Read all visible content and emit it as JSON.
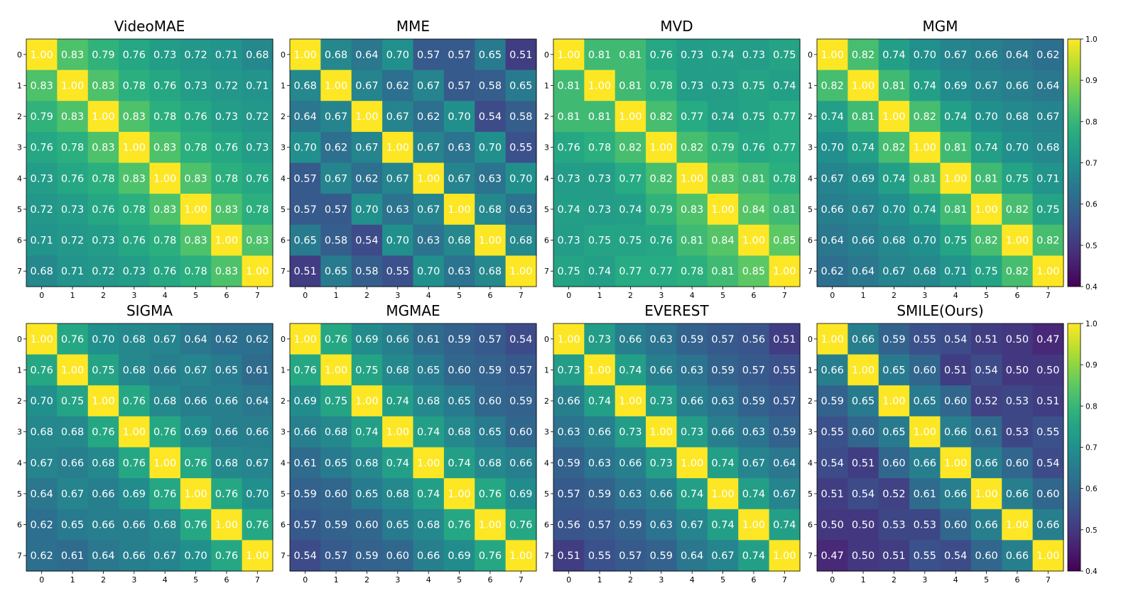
{
  "chart_data": {
    "type": "heatmap",
    "x_ticks": [
      "0",
      "1",
      "2",
      "3",
      "4",
      "5",
      "6",
      "7"
    ],
    "y_ticks": [
      "0",
      "1",
      "2",
      "3",
      "4",
      "5",
      "6",
      "7"
    ],
    "colormap": "viridis",
    "color_range": [
      0.4,
      1.0
    ],
    "colorbar_ticks": [
      "0.4",
      "0.5",
      "0.6",
      "0.7",
      "0.8",
      "0.9",
      "1.0"
    ],
    "panels": [
      {
        "title": "VideoMAE",
        "values": [
          [
            1.0,
            0.83,
            0.79,
            0.76,
            0.73,
            0.72,
            0.71,
            0.68
          ],
          [
            0.83,
            1.0,
            0.83,
            0.78,
            0.76,
            0.73,
            0.72,
            0.71
          ],
          [
            0.79,
            0.83,
            1.0,
            0.83,
            0.78,
            0.76,
            0.73,
            0.72
          ],
          [
            0.76,
            0.78,
            0.83,
            1.0,
            0.83,
            0.78,
            0.76,
            0.73
          ],
          [
            0.73,
            0.76,
            0.78,
            0.83,
            1.0,
            0.83,
            0.78,
            0.76
          ],
          [
            0.72,
            0.73,
            0.76,
            0.78,
            0.83,
            1.0,
            0.83,
            0.78
          ],
          [
            0.71,
            0.72,
            0.73,
            0.76,
            0.78,
            0.83,
            1.0,
            0.83
          ],
          [
            0.68,
            0.71,
            0.72,
            0.73,
            0.76,
            0.78,
            0.83,
            1.0
          ]
        ]
      },
      {
        "title": "MME",
        "values": [
          [
            1.0,
            0.68,
            0.64,
            0.7,
            0.57,
            0.57,
            0.65,
            0.51
          ],
          [
            0.68,
            1.0,
            0.67,
            0.62,
            0.67,
            0.57,
            0.58,
            0.65
          ],
          [
            0.64,
            0.67,
            1.0,
            0.67,
            0.62,
            0.7,
            0.54,
            0.58
          ],
          [
            0.7,
            0.62,
            0.67,
            1.0,
            0.67,
            0.63,
            0.7,
            0.55
          ],
          [
            0.57,
            0.67,
            0.62,
            0.67,
            1.0,
            0.67,
            0.63,
            0.7
          ],
          [
            0.57,
            0.57,
            0.7,
            0.63,
            0.67,
            1.0,
            0.68,
            0.63
          ],
          [
            0.65,
            0.58,
            0.54,
            0.7,
            0.63,
            0.68,
            1.0,
            0.68
          ],
          [
            0.51,
            0.65,
            0.58,
            0.55,
            0.7,
            0.63,
            0.68,
            1.0
          ]
        ]
      },
      {
        "title": "MVD",
        "values": [
          [
            1.0,
            0.81,
            0.81,
            0.76,
            0.73,
            0.74,
            0.73,
            0.75
          ],
          [
            0.81,
            1.0,
            0.81,
            0.78,
            0.73,
            0.73,
            0.75,
            0.74
          ],
          [
            0.81,
            0.81,
            1.0,
            0.82,
            0.77,
            0.74,
            0.75,
            0.77
          ],
          [
            0.76,
            0.78,
            0.82,
            1.0,
            0.82,
            0.79,
            0.76,
            0.77
          ],
          [
            0.73,
            0.73,
            0.77,
            0.82,
            1.0,
            0.83,
            0.81,
            0.78
          ],
          [
            0.74,
            0.73,
            0.74,
            0.79,
            0.83,
            1.0,
            0.84,
            0.81
          ],
          [
            0.73,
            0.75,
            0.75,
            0.76,
            0.81,
            0.84,
            1.0,
            0.85
          ],
          [
            0.75,
            0.74,
            0.77,
            0.77,
            0.78,
            0.81,
            0.85,
            1.0
          ]
        ]
      },
      {
        "title": "MGM",
        "values": [
          [
            1.0,
            0.82,
            0.74,
            0.7,
            0.67,
            0.66,
            0.64,
            0.62
          ],
          [
            0.82,
            1.0,
            0.81,
            0.74,
            0.69,
            0.67,
            0.66,
            0.64
          ],
          [
            0.74,
            0.81,
            1.0,
            0.82,
            0.74,
            0.7,
            0.68,
            0.67
          ],
          [
            0.7,
            0.74,
            0.82,
            1.0,
            0.81,
            0.74,
            0.7,
            0.68
          ],
          [
            0.67,
            0.69,
            0.74,
            0.81,
            1.0,
            0.81,
            0.75,
            0.71
          ],
          [
            0.66,
            0.67,
            0.7,
            0.74,
            0.81,
            1.0,
            0.82,
            0.75
          ],
          [
            0.64,
            0.66,
            0.68,
            0.7,
            0.75,
            0.82,
            1.0,
            0.82
          ],
          [
            0.62,
            0.64,
            0.67,
            0.68,
            0.71,
            0.75,
            0.82,
            1.0
          ]
        ]
      },
      {
        "title": "SIGMA",
        "values": [
          [
            1.0,
            0.76,
            0.7,
            0.68,
            0.67,
            0.64,
            0.62,
            0.62
          ],
          [
            0.76,
            1.0,
            0.75,
            0.68,
            0.66,
            0.67,
            0.65,
            0.61
          ],
          [
            0.7,
            0.75,
            1.0,
            0.76,
            0.68,
            0.66,
            0.66,
            0.64
          ],
          [
            0.68,
            0.68,
            0.76,
            1.0,
            0.76,
            0.69,
            0.66,
            0.66
          ],
          [
            0.67,
            0.66,
            0.68,
            0.76,
            1.0,
            0.76,
            0.68,
            0.67
          ],
          [
            0.64,
            0.67,
            0.66,
            0.69,
            0.76,
            1.0,
            0.76,
            0.7
          ],
          [
            0.62,
            0.65,
            0.66,
            0.66,
            0.68,
            0.76,
            1.0,
            0.76
          ],
          [
            0.62,
            0.61,
            0.64,
            0.66,
            0.67,
            0.7,
            0.76,
            1.0
          ]
        ]
      },
      {
        "title": "MGMAE",
        "values": [
          [
            1.0,
            0.76,
            0.69,
            0.66,
            0.61,
            0.59,
            0.57,
            0.54
          ],
          [
            0.76,
            1.0,
            0.75,
            0.68,
            0.65,
            0.6,
            0.59,
            0.57
          ],
          [
            0.69,
            0.75,
            1.0,
            0.74,
            0.68,
            0.65,
            0.6,
            0.59
          ],
          [
            0.66,
            0.68,
            0.74,
            1.0,
            0.74,
            0.68,
            0.65,
            0.6
          ],
          [
            0.61,
            0.65,
            0.68,
            0.74,
            1.0,
            0.74,
            0.68,
            0.66
          ],
          [
            0.59,
            0.6,
            0.65,
            0.68,
            0.74,
            1.0,
            0.76,
            0.69
          ],
          [
            0.57,
            0.59,
            0.6,
            0.65,
            0.68,
            0.76,
            1.0,
            0.76
          ],
          [
            0.54,
            0.57,
            0.59,
            0.6,
            0.66,
            0.69,
            0.76,
            1.0
          ]
        ]
      },
      {
        "title": "EVEREST",
        "values": [
          [
            1.0,
            0.73,
            0.66,
            0.63,
            0.59,
            0.57,
            0.56,
            0.51
          ],
          [
            0.73,
            1.0,
            0.74,
            0.66,
            0.63,
            0.59,
            0.57,
            0.55
          ],
          [
            0.66,
            0.74,
            1.0,
            0.73,
            0.66,
            0.63,
            0.59,
            0.57
          ],
          [
            0.63,
            0.66,
            0.73,
            1.0,
            0.73,
            0.66,
            0.63,
            0.59
          ],
          [
            0.59,
            0.63,
            0.66,
            0.73,
            1.0,
            0.74,
            0.67,
            0.64
          ],
          [
            0.57,
            0.59,
            0.63,
            0.66,
            0.74,
            1.0,
            0.74,
            0.67
          ],
          [
            0.56,
            0.57,
            0.59,
            0.63,
            0.67,
            0.74,
            1.0,
            0.74
          ],
          [
            0.51,
            0.55,
            0.57,
            0.59,
            0.64,
            0.67,
            0.74,
            1.0
          ]
        ]
      },
      {
        "title": "SMILE(Ours)",
        "values": [
          [
            1.0,
            0.66,
            0.59,
            0.55,
            0.54,
            0.51,
            0.5,
            0.47
          ],
          [
            0.66,
            1.0,
            0.65,
            0.6,
            0.51,
            0.54,
            0.5,
            0.5
          ],
          [
            0.59,
            0.65,
            1.0,
            0.65,
            0.6,
            0.52,
            0.53,
            0.51
          ],
          [
            0.55,
            0.6,
            0.65,
            1.0,
            0.66,
            0.61,
            0.53,
            0.55
          ],
          [
            0.54,
            0.51,
            0.6,
            0.66,
            1.0,
            0.66,
            0.6,
            0.54
          ],
          [
            0.51,
            0.54,
            0.52,
            0.61,
            0.66,
            1.0,
            0.66,
            0.6
          ],
          [
            0.5,
            0.5,
            0.53,
            0.53,
            0.6,
            0.66,
            1.0,
            0.66
          ],
          [
            0.47,
            0.5,
            0.51,
            0.55,
            0.54,
            0.6,
            0.66,
            1.0
          ]
        ]
      }
    ]
  }
}
